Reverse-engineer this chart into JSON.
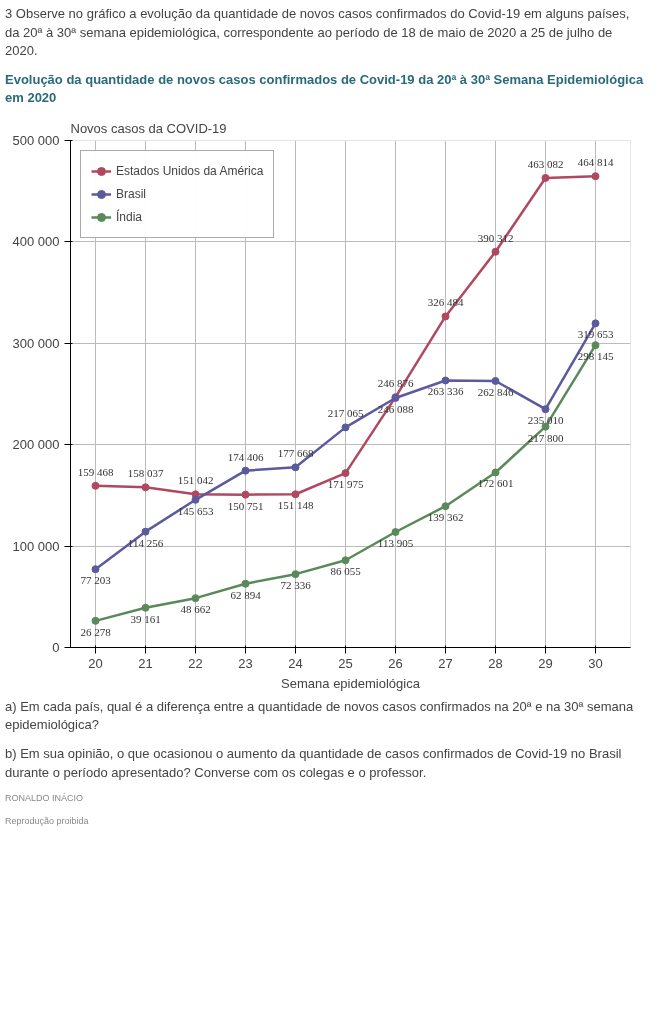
{
  "chart_data": {
    "type": "line",
    "title": "Evolução da quantidade de novos casos confirmados de Covid-19 da 20ª à 30ª Semana Epidemiológica em 2020",
    "ylabel": "Novos casos da COVID-19",
    "xlabel": "Semana epidemiológica",
    "x": [
      20,
      21,
      22,
      23,
      24,
      25,
      26,
      27,
      28,
      29,
      30
    ],
    "series": [
      {
        "name": "Estados Unidos da América",
        "color": "#b0485f",
        "values": [
          159468,
          158037,
          151042,
          150751,
          151148,
          171975,
          246876,
          326484,
          390312,
          463082,
          464814
        ]
      },
      {
        "name": "Brasil",
        "color": "#5b5a9e",
        "values": [
          77203,
          114256,
          145653,
          174406,
          177668,
          217065,
          246088,
          263336,
          262846,
          235010,
          319653
        ]
      },
      {
        "name": "Índia",
        "color": "#5a8a5a",
        "values": [
          26278,
          39161,
          48662,
          62894,
          72336,
          86055,
          113905,
          139362,
          172601,
          217800,
          298145
        ]
      }
    ],
    "xlim": [
      19.5,
      30.7
    ],
    "ylim": [
      0,
      500000
    ],
    "xticks": [
      20,
      21,
      22,
      23,
      24,
      25,
      26,
      27,
      28,
      29,
      30
    ],
    "yticks": [
      {
        "value": 0,
        "label": "0"
      },
      {
        "value": 100000,
        "label": "100 000"
      },
      {
        "value": 200000,
        "label": "200 000"
      },
      {
        "value": 300000,
        "label": "300 000"
      },
      {
        "value": 400000,
        "label": "400 000"
      },
      {
        "value": 500000,
        "label": "500 000"
      }
    ],
    "data_labels": true,
    "grid": true,
    "legend": "top left",
    "marker": "circle",
    "line_style": "solid",
    "annotations": [
      "3 Observe no gráfico a evolução da quantidade de novos casos confirmados do Covid-19 em alguns países, da 20ª à 30ª semana epidemiológica, correspondente ao período de 18 de maio de 2020 a 25 de julho de 2020.",
      "a) Em cada país, qual é a diferença entre a quantidade de novos casos confirmados na 20ª e na 30ª semana epidemiológica?",
      "b) Em sua opinião, o que ocasionou o aumento da quantidade de casos confirmados de Covid-19 no Brasil durante o período apresentado? Converse com os colegas e o professor.",
      "RONALDO INÁCIO",
      "Reprodução proibida"
    ]
  }
}
